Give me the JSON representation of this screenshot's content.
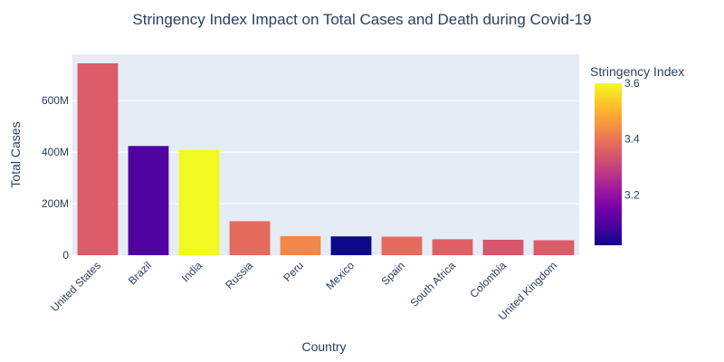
{
  "chart_data": {
    "type": "bar",
    "title": "Stringency Index Impact on Total Cases and Death during Covid-19",
    "xlabel": "Country",
    "ylabel": "Total Cases",
    "categories": [
      "United States",
      "Brazil",
      "India",
      "Russia",
      "Peru",
      "Mexico",
      "Spain",
      "South Africa",
      "Colombia",
      "United Kingdom"
    ],
    "values": [
      745000000,
      424000000,
      408000000,
      132000000,
      74000000,
      73000000,
      72000000,
      62000000,
      60000000,
      58000000
    ],
    "stringency_index": [
      3.35,
      3.1,
      3.6,
      3.38,
      3.43,
      3.02,
      3.38,
      3.36,
      3.34,
      3.35
    ],
    "ylim": [
      0,
      780000000
    ],
    "y_ticks": [
      0,
      200000000,
      400000000,
      600000000
    ],
    "y_tick_labels": [
      "0",
      "200M",
      "400M",
      "600M"
    ],
    "grid": true,
    "colorbar": {
      "title": "Stringency Index",
      "range": [
        3.02,
        3.6
      ],
      "ticks": [
        3.2,
        3.4,
        3.6
      ],
      "tick_labels": [
        "3.2",
        "3.4",
        "3.6"
      ],
      "colorscale": [
        "#0d0887",
        "#46039f",
        "#7201a8",
        "#9c179e",
        "#bd3786",
        "#d8576b",
        "#ed7953",
        "#fb9f3a",
        "#fdca26",
        "#f0f921"
      ]
    },
    "colors": {
      "plot_bg": "#e5ecf6",
      "grid": "#ffffff",
      "text": "#2a3f5f"
    }
  }
}
